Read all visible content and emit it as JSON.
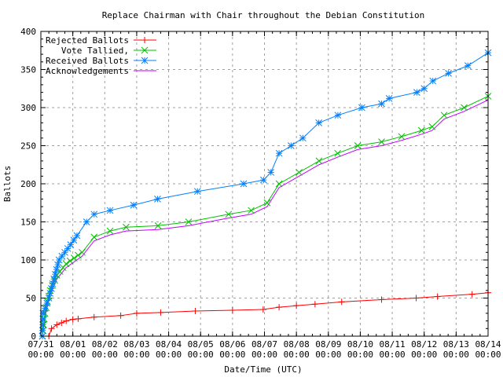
{
  "chart_data": {
    "type": "line",
    "title": "Replace Chairman with Chair throughout the Debian Constitution",
    "xlabel": "Date/Time (UTC)",
    "ylabel": "Ballots",
    "ylim": [
      0,
      400
    ],
    "yticks": [
      0,
      50,
      100,
      150,
      200,
      250,
      300,
      350,
      400
    ],
    "xlim": [
      "07/31 00:00",
      "08/14 00:00"
    ],
    "xticks": [
      "07/31",
      "08/01",
      "08/02",
      "08/03",
      "08/04",
      "08/05",
      "08/06",
      "08/07",
      "08/08",
      "08/09",
      "08/10",
      "08/11",
      "08/12",
      "08/13",
      "08/14"
    ],
    "xtick_time": "00:00",
    "grid": true,
    "legend_position": "top-left",
    "series": [
      {
        "name": "Rejected Ballots",
        "color": "#ff0000",
        "marker": "plus",
        "points": [
          [
            "07/31 06:00",
            0
          ],
          [
            "07/31 08:00",
            10
          ],
          [
            "07/31 12:00",
            15
          ],
          [
            "07/31 19:00",
            20
          ],
          [
            "08/01 00:00",
            22
          ],
          [
            "08/01 16:00",
            25
          ],
          [
            "08/02 12:00",
            27
          ],
          [
            "08/03 00:00",
            30
          ],
          [
            "08/03 18:00",
            31
          ],
          [
            "08/04 20:00",
            33
          ],
          [
            "08/06 00:00",
            34
          ],
          [
            "08/06 23:00",
            35
          ],
          [
            "08/07 11:00",
            38
          ],
          [
            "08/08 00:00",
            40
          ],
          [
            "08/08 14:00",
            42
          ],
          [
            "08/09 10:00",
            45
          ],
          [
            "08/10 16:00",
            48
          ],
          [
            "08/11 18:00",
            50
          ],
          [
            "08/12 10:00",
            52
          ],
          [
            "08/13 12:00",
            55
          ],
          [
            "08/14 00:00",
            57
          ]
        ]
      },
      {
        "name": "Vote Tallied,",
        "color": "#00c000",
        "marker": "cross",
        "points": [
          [
            "07/31 01:10",
            0
          ],
          [
            "07/31 03:00",
            30
          ],
          [
            "07/31 07:00",
            60
          ],
          [
            "07/31 12:00",
            80
          ],
          [
            "07/31 19:00",
            95
          ],
          [
            "08/01 07:00",
            110
          ],
          [
            "08/01 16:00",
            130
          ],
          [
            "08/02 04:00",
            138
          ],
          [
            "08/02 16:00",
            143
          ],
          [
            "08/03 16:00",
            145
          ],
          [
            "08/04 15:00",
            150
          ],
          [
            "08/05 21:00",
            160
          ],
          [
            "08/06 14:00",
            165
          ],
          [
            "08/07 02:00",
            175
          ],
          [
            "08/07 11:00",
            200
          ],
          [
            "08/08 02:00",
            215
          ],
          [
            "08/08 17:00",
            230
          ],
          [
            "08/09 07:00",
            240
          ],
          [
            "08/09 22:00",
            250
          ],
          [
            "08/10 16:00",
            255
          ],
          [
            "08/11 07:00",
            262
          ],
          [
            "08/11 22:00",
            270
          ],
          [
            "08/12 06:00",
            275
          ],
          [
            "08/12 15:00",
            290
          ],
          [
            "08/13 06:00",
            300
          ],
          [
            "08/14 00:00",
            315
          ]
        ]
      },
      {
        "name": "Received Ballots",
        "color": "#0080ff",
        "marker": "star",
        "points": [
          [
            "07/31 01:10",
            0
          ],
          [
            "07/31 01:40",
            30
          ],
          [
            "07/31 06:00",
            50
          ],
          [
            "07/31 13:40",
            100
          ],
          [
            "07/31 22:20",
            120
          ],
          [
            "08/01 10:20",
            150
          ],
          [
            "08/01 16:00",
            160
          ],
          [
            "08/02 04:00",
            165
          ],
          [
            "08/02 21:40",
            172
          ],
          [
            "08/03 15:40",
            180
          ],
          [
            "08/04 21:40",
            190
          ],
          [
            "08/06 08:20",
            200
          ],
          [
            "08/06 23:20",
            205
          ],
          [
            "08/07 04:50",
            215
          ],
          [
            "08/07 11:00",
            240
          ],
          [
            "08/07 20:00",
            250
          ],
          [
            "08/08 04:50",
            260
          ],
          [
            "08/08 16:50",
            280
          ],
          [
            "08/09 07:10",
            290
          ],
          [
            "08/10 01:10",
            300
          ],
          [
            "08/10 16:00",
            305
          ],
          [
            "08/10 21:40",
            312
          ],
          [
            "08/11 18:30",
            320
          ],
          [
            "08/12 00:00",
            325
          ],
          [
            "08/12 06:30",
            335
          ],
          [
            "08/12 18:15",
            345
          ],
          [
            "08/13 08:50",
            355
          ],
          [
            "08/14 00:00",
            372
          ]
        ]
      },
      {
        "name": "Acknowledgements",
        "color": "#c000ff",
        "marker": "none",
        "points": [
          [
            "07/31 01:10",
            0
          ],
          [
            "07/31 03:00",
            25
          ],
          [
            "07/31 07:00",
            55
          ],
          [
            "07/31 12:00",
            75
          ],
          [
            "07/31 19:00",
            90
          ],
          [
            "08/01 07:00",
            105
          ],
          [
            "08/01 16:00",
            125
          ],
          [
            "08/02 04:00",
            133
          ],
          [
            "08/02 16:00",
            138
          ],
          [
            "08/03 16:00",
            140
          ],
          [
            "08/04 15:00",
            145
          ],
          [
            "08/05 21:00",
            155
          ],
          [
            "08/06 14:00",
            160
          ],
          [
            "08/07 02:00",
            170
          ],
          [
            "08/07 11:00",
            195
          ],
          [
            "08/08 02:00",
            210
          ],
          [
            "08/08 17:00",
            225
          ],
          [
            "08/09 07:00",
            235
          ],
          [
            "08/09 22:00",
            245
          ],
          [
            "08/10 16:00",
            250
          ],
          [
            "08/11 07:00",
            257
          ],
          [
            "08/11 22:00",
            265
          ],
          [
            "08/12 06:00",
            270
          ],
          [
            "08/12 15:00",
            285
          ],
          [
            "08/13 06:00",
            295
          ],
          [
            "08/14 00:00",
            310
          ]
        ]
      }
    ]
  }
}
